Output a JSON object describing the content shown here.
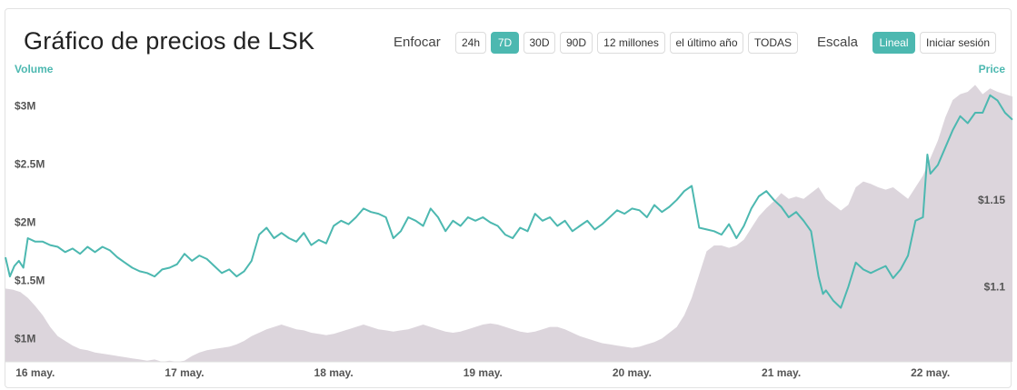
{
  "header": {
    "title": "Gráfico de precios de LSK",
    "zoom_label": "Enfocar",
    "zoom_options": [
      "24h",
      "7D",
      "30D",
      "90D",
      "12 millones",
      "el último año",
      "TODAS"
    ],
    "zoom_selected": "7D",
    "scale_label": "Escala",
    "scale_options": [
      "Lineal",
      "Iniciar sesión"
    ],
    "scale_selected": "Lineal"
  },
  "colors": {
    "accent": "#4cb8b0",
    "price_line": "#4cb8b0",
    "volume_fill": "#dcd5dc"
  },
  "chart_data": {
    "type": "line",
    "left_axis_label": "Volume",
    "right_axis_label": "Price",
    "volume_ticks": [
      "$1M",
      "$1.5M",
      "$2M",
      "$2.5M",
      "$3M"
    ],
    "price_ticks": [
      "$1.1",
      "$1.15"
    ],
    "x_ticks": [
      "16 may.",
      "17 may.",
      "18 may.",
      "19 may.",
      "20 may.",
      "21 may.",
      "22 may."
    ],
    "x_start": 15.8,
    "x_end": 22.55,
    "volume_ylim": [
      0.8,
      3.3
    ],
    "price_ylim": [
      1.057,
      1.224
    ],
    "series": [
      {
        "name": "Price",
        "axis": "right",
        "points": [
          [
            15.8,
            1.117
          ],
          [
            15.83,
            1.106
          ],
          [
            15.86,
            1.112
          ],
          [
            15.89,
            1.115
          ],
          [
            15.92,
            1.111
          ],
          [
            15.95,
            1.128
          ],
          [
            16.0,
            1.126
          ],
          [
            16.05,
            1.126
          ],
          [
            16.1,
            1.124
          ],
          [
            16.15,
            1.123
          ],
          [
            16.2,
            1.12
          ],
          [
            16.25,
            1.122
          ],
          [
            16.3,
            1.119
          ],
          [
            16.35,
            1.123
          ],
          [
            16.4,
            1.12
          ],
          [
            16.45,
            1.123
          ],
          [
            16.5,
            1.121
          ],
          [
            16.55,
            1.117
          ],
          [
            16.6,
            1.114
          ],
          [
            16.65,
            1.111
          ],
          [
            16.7,
            1.109
          ],
          [
            16.75,
            1.108
          ],
          [
            16.8,
            1.106
          ],
          [
            16.85,
            1.11
          ],
          [
            16.9,
            1.111
          ],
          [
            16.95,
            1.113
          ],
          [
            17.0,
            1.119
          ],
          [
            17.05,
            1.115
          ],
          [
            17.1,
            1.118
          ],
          [
            17.15,
            1.116
          ],
          [
            17.2,
            1.112
          ],
          [
            17.25,
            1.108
          ],
          [
            17.3,
            1.11
          ],
          [
            17.35,
            1.106
          ],
          [
            17.4,
            1.109
          ],
          [
            17.45,
            1.115
          ],
          [
            17.5,
            1.13
          ],
          [
            17.55,
            1.134
          ],
          [
            17.6,
            1.128
          ],
          [
            17.65,
            1.131
          ],
          [
            17.7,
            1.128
          ],
          [
            17.75,
            1.126
          ],
          [
            17.8,
            1.131
          ],
          [
            17.85,
            1.124
          ],
          [
            17.9,
            1.127
          ],
          [
            17.95,
            1.125
          ],
          [
            18.0,
            1.135
          ],
          [
            18.05,
            1.138
          ],
          [
            18.1,
            1.136
          ],
          [
            18.15,
            1.14
          ],
          [
            18.2,
            1.145
          ],
          [
            18.25,
            1.143
          ],
          [
            18.3,
            1.142
          ],
          [
            18.35,
            1.14
          ],
          [
            18.4,
            1.128
          ],
          [
            18.45,
            1.132
          ],
          [
            18.5,
            1.14
          ],
          [
            18.55,
            1.138
          ],
          [
            18.6,
            1.135
          ],
          [
            18.65,
            1.145
          ],
          [
            18.7,
            1.14
          ],
          [
            18.75,
            1.132
          ],
          [
            18.8,
            1.138
          ],
          [
            18.85,
            1.135
          ],
          [
            18.9,
            1.14
          ],
          [
            18.95,
            1.138
          ],
          [
            19.0,
            1.14
          ],
          [
            19.05,
            1.137
          ],
          [
            19.1,
            1.135
          ],
          [
            19.15,
            1.13
          ],
          [
            19.2,
            1.128
          ],
          [
            19.25,
            1.134
          ],
          [
            19.3,
            1.132
          ],
          [
            19.35,
            1.142
          ],
          [
            19.4,
            1.138
          ],
          [
            19.45,
            1.14
          ],
          [
            19.5,
            1.135
          ],
          [
            19.55,
            1.138
          ],
          [
            19.6,
            1.132
          ],
          [
            19.65,
            1.135
          ],
          [
            19.7,
            1.138
          ],
          [
            19.75,
            1.133
          ],
          [
            19.8,
            1.136
          ],
          [
            19.85,
            1.14
          ],
          [
            19.9,
            1.144
          ],
          [
            19.95,
            1.142
          ],
          [
            20.0,
            1.145
          ],
          [
            20.05,
            1.144
          ],
          [
            20.1,
            1.14
          ],
          [
            20.15,
            1.147
          ],
          [
            20.2,
            1.143
          ],
          [
            20.25,
            1.146
          ],
          [
            20.3,
            1.15
          ],
          [
            20.35,
            1.155
          ],
          [
            20.4,
            1.158
          ],
          [
            20.45,
            1.134
          ],
          [
            20.5,
            1.133
          ],
          [
            20.55,
            1.132
          ],
          [
            20.6,
            1.13
          ],
          [
            20.65,
            1.136
          ],
          [
            20.7,
            1.128
          ],
          [
            20.75,
            1.135
          ],
          [
            20.8,
            1.145
          ],
          [
            20.85,
            1.152
          ],
          [
            20.9,
            1.155
          ],
          [
            20.95,
            1.15
          ],
          [
            21.0,
            1.146
          ],
          [
            21.05,
            1.14
          ],
          [
            21.1,
            1.143
          ],
          [
            21.15,
            1.138
          ],
          [
            21.2,
            1.132
          ],
          [
            21.25,
            1.106
          ],
          [
            21.28,
            1.096
          ],
          [
            21.3,
            1.098
          ],
          [
            21.35,
            1.092
          ],
          [
            21.4,
            1.088
          ],
          [
            21.45,
            1.1
          ],
          [
            21.5,
            1.114
          ],
          [
            21.55,
            1.11
          ],
          [
            21.6,
            1.108
          ],
          [
            21.65,
            1.11
          ],
          [
            21.7,
            1.112
          ],
          [
            21.75,
            1.105
          ],
          [
            21.8,
            1.11
          ],
          [
            21.85,
            1.118
          ],
          [
            21.9,
            1.138
          ],
          [
            21.95,
            1.14
          ],
          [
            21.98,
            1.176
          ],
          [
            22.0,
            1.165
          ],
          [
            22.05,
            1.17
          ],
          [
            22.1,
            1.18
          ],
          [
            22.15,
            1.19
          ],
          [
            22.2,
            1.198
          ],
          [
            22.25,
            1.194
          ],
          [
            22.3,
            1.2
          ],
          [
            22.35,
            1.2
          ],
          [
            22.4,
            1.21
          ],
          [
            22.45,
            1.207
          ],
          [
            22.5,
            1.2
          ],
          [
            22.55,
            1.196
          ]
        ]
      },
      {
        "name": "Volume",
        "axis": "left",
        "points": [
          [
            15.8,
            1.43
          ],
          [
            15.85,
            1.42
          ],
          [
            15.9,
            1.4
          ],
          [
            15.95,
            1.35
          ],
          [
            16.0,
            1.28
          ],
          [
            16.05,
            1.2
          ],
          [
            16.1,
            1.1
          ],
          [
            16.15,
            1.02
          ],
          [
            16.2,
            0.98
          ],
          [
            16.25,
            0.94
          ],
          [
            16.3,
            0.91
          ],
          [
            16.35,
            0.9
          ],
          [
            16.4,
            0.88
          ],
          [
            16.45,
            0.87
          ],
          [
            16.5,
            0.86
          ],
          [
            16.55,
            0.85
          ],
          [
            16.6,
            0.84
          ],
          [
            16.65,
            0.83
          ],
          [
            16.7,
            0.82
          ],
          [
            16.75,
            0.81
          ],
          [
            16.8,
            0.82
          ],
          [
            16.85,
            0.8
          ],
          [
            16.9,
            0.81
          ],
          [
            16.95,
            0.8
          ],
          [
            17.0,
            0.81
          ],
          [
            17.05,
            0.85
          ],
          [
            17.1,
            0.88
          ],
          [
            17.15,
            0.9
          ],
          [
            17.2,
            0.91
          ],
          [
            17.25,
            0.92
          ],
          [
            17.3,
            0.93
          ],
          [
            17.35,
            0.95
          ],
          [
            17.4,
            0.98
          ],
          [
            17.45,
            1.02
          ],
          [
            17.5,
            1.05
          ],
          [
            17.55,
            1.08
          ],
          [
            17.6,
            1.1
          ],
          [
            17.65,
            1.12
          ],
          [
            17.7,
            1.1
          ],
          [
            17.75,
            1.08
          ],
          [
            17.8,
            1.07
          ],
          [
            17.85,
            1.05
          ],
          [
            17.9,
            1.04
          ],
          [
            17.95,
            1.03
          ],
          [
            18.0,
            1.04
          ],
          [
            18.05,
            1.06
          ],
          [
            18.1,
            1.08
          ],
          [
            18.15,
            1.1
          ],
          [
            18.2,
            1.12
          ],
          [
            18.25,
            1.1
          ],
          [
            18.3,
            1.08
          ],
          [
            18.35,
            1.07
          ],
          [
            18.4,
            1.06
          ],
          [
            18.45,
            1.07
          ],
          [
            18.5,
            1.08
          ],
          [
            18.55,
            1.1
          ],
          [
            18.6,
            1.12
          ],
          [
            18.65,
            1.1
          ],
          [
            18.7,
            1.08
          ],
          [
            18.75,
            1.06
          ],
          [
            18.8,
            1.05
          ],
          [
            18.85,
            1.06
          ],
          [
            18.9,
            1.08
          ],
          [
            18.95,
            1.1
          ],
          [
            19.0,
            1.12
          ],
          [
            19.05,
            1.13
          ],
          [
            19.1,
            1.12
          ],
          [
            19.15,
            1.1
          ],
          [
            19.2,
            1.08
          ],
          [
            19.25,
            1.06
          ],
          [
            19.3,
            1.05
          ],
          [
            19.35,
            1.06
          ],
          [
            19.4,
            1.08
          ],
          [
            19.45,
            1.1
          ],
          [
            19.5,
            1.1
          ],
          [
            19.55,
            1.08
          ],
          [
            19.6,
            1.05
          ],
          [
            19.65,
            1.02
          ],
          [
            19.7,
            1.0
          ],
          [
            19.75,
            0.98
          ],
          [
            19.8,
            0.96
          ],
          [
            19.85,
            0.95
          ],
          [
            19.9,
            0.94
          ],
          [
            19.95,
            0.93
          ],
          [
            20.0,
            0.92
          ],
          [
            20.05,
            0.93
          ],
          [
            20.1,
            0.95
          ],
          [
            20.15,
            0.97
          ],
          [
            20.2,
            1.0
          ],
          [
            20.25,
            1.05
          ],
          [
            20.3,
            1.1
          ],
          [
            20.35,
            1.2
          ],
          [
            20.4,
            1.35
          ],
          [
            20.45,
            1.55
          ],
          [
            20.5,
            1.75
          ],
          [
            20.55,
            1.8
          ],
          [
            20.6,
            1.8
          ],
          [
            20.65,
            1.78
          ],
          [
            20.7,
            1.8
          ],
          [
            20.75,
            1.85
          ],
          [
            20.8,
            1.95
          ],
          [
            20.85,
            2.05
          ],
          [
            20.9,
            2.12
          ],
          [
            20.95,
            2.18
          ],
          [
            21.0,
            2.25
          ],
          [
            21.05,
            2.2
          ],
          [
            21.1,
            2.22
          ],
          [
            21.15,
            2.2
          ],
          [
            21.2,
            2.25
          ],
          [
            21.25,
            2.3
          ],
          [
            21.3,
            2.2
          ],
          [
            21.35,
            2.15
          ],
          [
            21.4,
            2.1
          ],
          [
            21.45,
            2.15
          ],
          [
            21.5,
            2.3
          ],
          [
            21.55,
            2.35
          ],
          [
            21.6,
            2.33
          ],
          [
            21.65,
            2.3
          ],
          [
            21.7,
            2.28
          ],
          [
            21.75,
            2.3
          ],
          [
            21.8,
            2.25
          ],
          [
            21.85,
            2.2
          ],
          [
            21.9,
            2.3
          ],
          [
            21.95,
            2.4
          ],
          [
            22.0,
            2.55
          ],
          [
            22.05,
            2.7
          ],
          [
            22.1,
            2.9
          ],
          [
            22.15,
            3.05
          ],
          [
            22.2,
            3.1
          ],
          [
            22.25,
            3.12
          ],
          [
            22.3,
            3.18
          ],
          [
            22.35,
            3.1
          ],
          [
            22.4,
            3.15
          ],
          [
            22.45,
            3.12
          ],
          [
            22.5,
            3.1
          ],
          [
            22.55,
            3.08
          ]
        ]
      }
    ]
  }
}
